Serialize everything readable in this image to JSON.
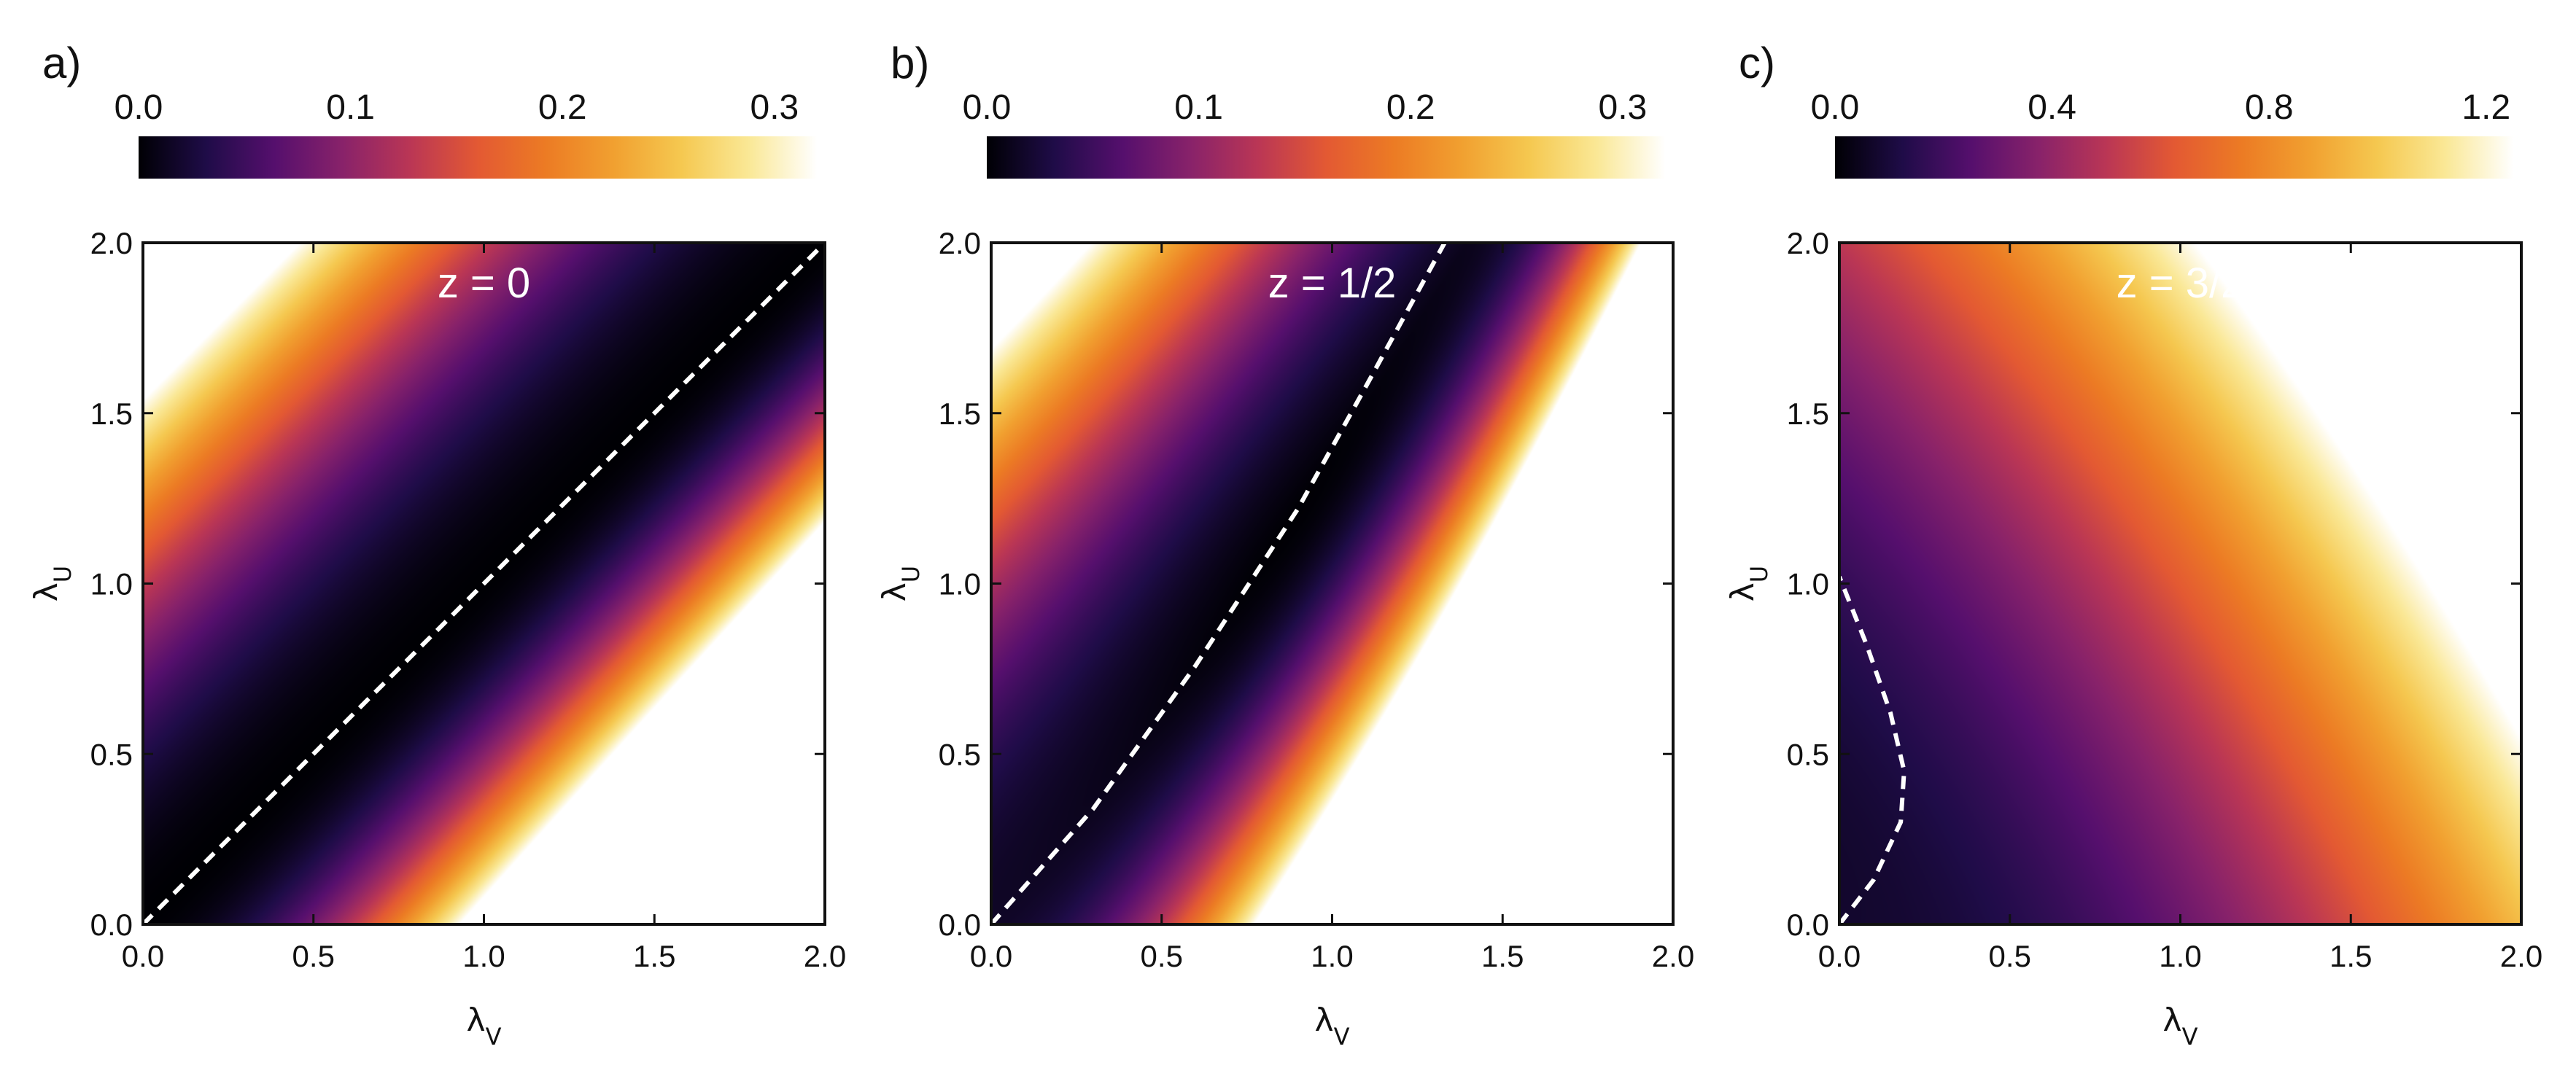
{
  "chart_data": [
    {
      "type": "heatmap",
      "panel_label": "a)",
      "annotation": "z = 0",
      "xlabel": "λ",
      "xlabel_sub": "V",
      "ylabel": "λ",
      "ylabel_sub": "U",
      "xlim": [
        0,
        2
      ],
      "ylim": [
        0,
        2
      ],
      "x_ticks": [
        "0.0",
        "0.5",
        "1.0",
        "1.5",
        "2.0"
      ],
      "y_ticks": [
        "0.0",
        "0.5",
        "1.0",
        "1.5",
        "2.0"
      ],
      "colorbar": {
        "range": [
          0,
          0.32
        ],
        "ticks": [
          0.0,
          0.1,
          0.2,
          0.3
        ],
        "tick_labels": [
          "0.0",
          "0.1",
          "0.2",
          "0.3"
        ]
      },
      "colormap": "inferno-like",
      "dashed_curve": {
        "color": "#ffffff",
        "points": [
          [
            0.0,
            0.0
          ],
          [
            0.5,
            0.5
          ],
          [
            1.0,
            1.0
          ],
          [
            1.5,
            1.5
          ],
          [
            2.0,
            2.0
          ]
        ]
      },
      "saturated_region": "lower-right white"
    },
    {
      "type": "heatmap",
      "panel_label": "b)",
      "annotation": "z = 1/2",
      "xlabel": "λ",
      "xlabel_sub": "V",
      "ylabel": "λ",
      "ylabel_sub": "U",
      "xlim": [
        0,
        2
      ],
      "ylim": [
        0,
        2
      ],
      "x_ticks": [
        "0.0",
        "0.5",
        "1.0",
        "1.5",
        "2.0"
      ],
      "y_ticks": [
        "0.0",
        "0.5",
        "1.0",
        "1.5",
        "2.0"
      ],
      "colorbar": {
        "range": [
          0,
          0.32
        ],
        "ticks": [
          0.0,
          0.1,
          0.2,
          0.3
        ],
        "tick_labels": [
          "0.0",
          "0.1",
          "0.2",
          "0.3"
        ]
      },
      "colormap": "inferno-like",
      "dashed_curve": {
        "color": "#ffffff",
        "points": [
          [
            0.0,
            0.0
          ],
          [
            0.3,
            0.34
          ],
          [
            0.6,
            0.76
          ],
          [
            0.9,
            1.22
          ],
          [
            1.1,
            1.58
          ],
          [
            1.33,
            2.0
          ]
        ]
      },
      "saturated_region": "lower-right white"
    },
    {
      "type": "heatmap",
      "panel_label": "c)",
      "annotation": "z = 3/2",
      "xlabel": "λ",
      "xlabel_sub": "V",
      "ylabel": "λ",
      "ylabel_sub": "U",
      "xlim": [
        0,
        2
      ],
      "ylim": [
        0,
        2
      ],
      "x_ticks": [
        "0.0",
        "0.5",
        "1.0",
        "1.5",
        "2.0"
      ],
      "y_ticks": [
        "0.0",
        "0.5",
        "1.0",
        "1.5",
        "2.0"
      ],
      "colorbar": {
        "range": [
          0,
          1.25
        ],
        "ticks": [
          0.0,
          0.4,
          0.8,
          1.2
        ],
        "tick_labels": [
          "0.0",
          "0.4",
          "0.8",
          "1.2"
        ]
      },
      "colormap": "inferno-like",
      "dashed_curve": {
        "color": "#ffffff",
        "points": [
          [
            0.0,
            0.0
          ],
          [
            0.1,
            0.13
          ],
          [
            0.18,
            0.3
          ],
          [
            0.19,
            0.45
          ],
          [
            0.15,
            0.62
          ],
          [
            0.08,
            0.82
          ],
          [
            0.0,
            1.02
          ]
        ]
      }
    }
  ]
}
